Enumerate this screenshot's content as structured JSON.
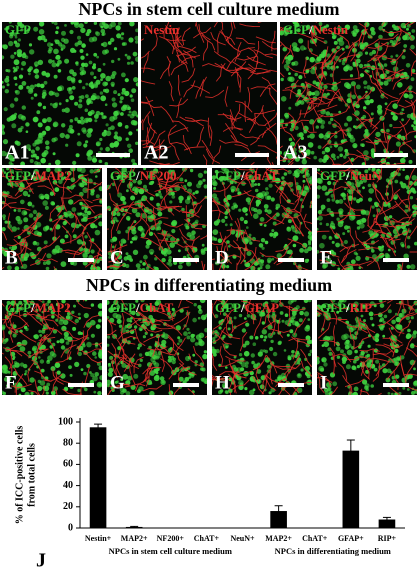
{
  "figure": {
    "titles": [
      "NPCs in stem cell culture medium",
      "NPCs in differentiating medium"
    ],
    "panels": [
      {
        "letter": "A1",
        "label_parts": [
          {
            "text": "GFP",
            "color": "#3fd23f"
          }
        ]
      },
      {
        "letter": "A2",
        "label_parts": [
          {
            "text": "Nestin",
            "color": "#e8302c"
          }
        ]
      },
      {
        "letter": "A3",
        "label_parts": [
          {
            "text": "GFP",
            "color": "#3fd23f"
          },
          {
            "text": "/",
            "color": "#ffffff"
          },
          {
            "text": "Nestin",
            "color": "#e8302c"
          }
        ]
      },
      {
        "letter": "B",
        "label_parts": [
          {
            "text": "GFP",
            "color": "#3fd23f"
          },
          {
            "text": "/",
            "color": "#ffffff"
          },
          {
            "text": "MAP2",
            "color": "#e8302c"
          }
        ]
      },
      {
        "letter": "C",
        "label_parts": [
          {
            "text": "GFP",
            "color": "#3fd23f"
          },
          {
            "text": "/",
            "color": "#ffffff"
          },
          {
            "text": "NF200",
            "color": "#e8302c"
          }
        ]
      },
      {
        "letter": "D",
        "label_parts": [
          {
            "text": "GFP",
            "color": "#3fd23f"
          },
          {
            "text": "/",
            "color": "#ffffff"
          },
          {
            "text": "ChAT",
            "color": "#e8302c"
          }
        ]
      },
      {
        "letter": "E",
        "label_parts": [
          {
            "text": "GFP",
            "color": "#3fd23f"
          },
          {
            "text": "/",
            "color": "#ffffff"
          },
          {
            "text": "NeuN",
            "color": "#e8302c"
          }
        ]
      },
      {
        "letter": "F",
        "label_parts": [
          {
            "text": "GFP",
            "color": "#3fd23f"
          },
          {
            "text": "/",
            "color": "#ffffff"
          },
          {
            "text": "MAP2",
            "color": "#e8302c"
          }
        ]
      },
      {
        "letter": "G",
        "label_parts": [
          {
            "text": "GFP",
            "color": "#3fd23f"
          },
          {
            "text": "/",
            "color": "#ffffff"
          },
          {
            "text": "ChAT",
            "color": "#e8302c"
          }
        ]
      },
      {
        "letter": "H",
        "label_parts": [
          {
            "text": "GFP",
            "color": "#3fd23f"
          },
          {
            "text": "/",
            "color": "#ffffff"
          },
          {
            "text": "GFAP",
            "color": "#e8302c"
          }
        ]
      },
      {
        "letter": "I",
        "label_parts": [
          {
            "text": "GFP",
            "color": "#3fd23f"
          },
          {
            "text": "/",
            "color": "#ffffff"
          },
          {
            "text": "RIP",
            "color": "#e8302c"
          }
        ]
      }
    ]
  },
  "chart_data": {
    "type": "bar",
    "panel_letter": "J",
    "y_label": [
      "% of ICC-positive cells",
      "from total cells"
    ],
    "color": "#000000",
    "groups": [
      {
        "label": "NPCs in stem cell culture medium",
        "categories": [
          "Nestin+",
          "MAP2+",
          "NF200+",
          "ChAT+",
          "NeuN+"
        ],
        "values": [
          95,
          1,
          0,
          0,
          0
        ],
        "errors": [
          3,
          0.5,
          0,
          0,
          0
        ]
      },
      {
        "label": "NPCs in differentiating medium",
        "categories": [
          "MAP2+",
          "ChAT+",
          "GFAP+",
          "RIP+"
        ],
        "values": [
          16,
          0,
          73,
          8
        ],
        "errors": [
          5,
          0,
          10,
          2
        ]
      }
    ],
    "ylim": [
      0,
      100
    ],
    "yticks": [
      0,
      20,
      40,
      60,
      80,
      100
    ]
  }
}
